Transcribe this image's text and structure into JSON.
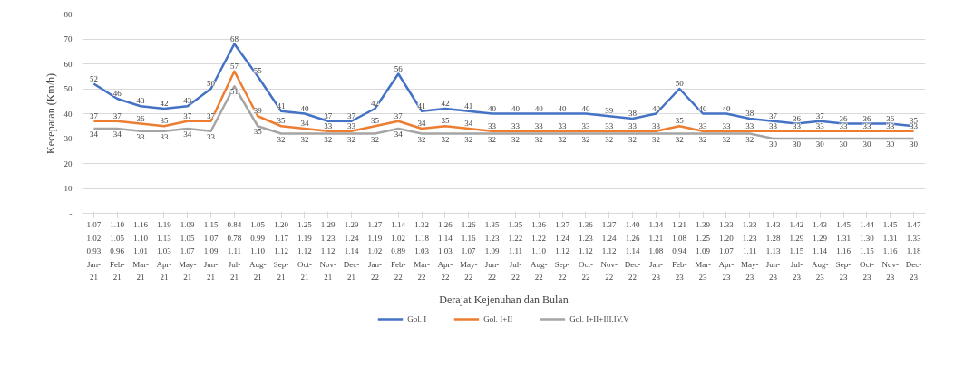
{
  "chart_data": {
    "type": "line",
    "xlabel": "Derajat Kejenuhan dan Bulan",
    "ylabel": "Kecepatan (Km/h)",
    "categories": [
      "1.07\n1.02\n0.93\nJan-\n21",
      "1.10\n1.05\n0.96\nFeb-\n21",
      "1.16\n1.10\n1.01\nMar-\n21",
      "1.19\n1.13\n1.03\nApr-\n21",
      "1.09\n1.05\n1.07\nMay-\n21",
      "1.15\n1.07\n1.09\nJun-\n21",
      "0.84\n0.78\n1.11\nJul-\n21",
      "1.05\n0.99\n1.10\nAug-\n21",
      "1.20\n1.17\n1.12\nSep-\n21",
      "1.25\n1.19\n1.12\nOct-\n21",
      "1.29\n1.23\n1.12\nNov-\n21",
      "1.29\n1.24\n1.14\nDec-\n21",
      "1.27\n1.19\n1.02\nJan-\n22",
      "1.14\n1.02\n0.89\nFeb-\n22",
      "1.32\n1.18\n1.03\nMar-\n22",
      "1.26\n1.14\n1.03\nApr-\n22",
      "1.26\n1.16\n1.07\nMay-\n22",
      "1.35\n1.23\n1.09\nJun-\n22",
      "1.35\n1.22\n1.11\nJul-\n22",
      "1.36\n1.22\n1.10\nAug-\n22",
      "1.37\n1.24\n1.12\nSep-\n22",
      "1.36\n1.23\n1.12\nOct-\n22",
      "1.37\n1.24\n1.12\nNov-\n22",
      "1.40\n1.26\n1.14\nDec-\n22",
      "1.34\n1.21\n1.08\nJan-\n23",
      "1.21\n1.08\n0.94\nFeb-\n23",
      "1.39\n1.25\n1.09\nMar-\n23",
      "1.33\n1.20\n1.07\nApr-\n23",
      "1.33\n1.23\n1.11\nMay-\n23",
      "1.43\n1.28\n1.13\nJun-\n23",
      "1.42\n1.29\n1.15\nJul-\n23",
      "1.43\n1.29\n1.14\nAug-\n23",
      "1.45\n1.31\n1.16\nSep-\n23",
      "1.44\n1.30\n1.15\nOct-\n23",
      "1.45\n1.31\n1.16\nNov-\n23",
      "1.47\n1.33\n1.18\nDec-\n23"
    ],
    "series": [
      {
        "name": "Gol. I",
        "color": "#4472c4",
        "values": [
          52,
          46,
          43,
          42,
          43,
          50,
          68,
          55,
          41,
          40,
          37,
          37,
          42,
          56,
          41,
          42,
          41,
          40,
          40,
          40,
          40,
          40,
          39,
          38,
          40,
          50,
          40,
          40,
          38,
          37,
          36,
          37,
          36,
          36,
          36,
          35
        ]
      },
      {
        "name": "Gol. I+II",
        "color": "#ed7d31",
        "values": [
          37,
          37,
          36,
          35,
          37,
          37,
          57,
          39,
          35,
          34,
          33,
          33,
          35,
          37,
          34,
          35,
          34,
          33,
          33,
          33,
          33,
          33,
          33,
          33,
          33,
          35,
          33,
          33,
          33,
          33,
          33,
          33,
          33,
          33,
          33,
          33
        ]
      },
      {
        "name": "Gol. I+II+III,IV,V",
        "color": "#a5a5a5",
        "values": [
          34,
          34,
          33,
          33,
          34,
          33,
          51,
          35,
          32,
          32,
          32,
          32,
          32,
          34,
          32,
          32,
          32,
          32,
          32,
          32,
          32,
          32,
          32,
          32,
          32,
          32,
          32,
          32,
          32,
          30,
          30,
          30,
          30,
          30,
          30,
          30
        ]
      }
    ],
    "ylim": [
      0,
      80
    ],
    "yticks": [
      {
        "value": 0,
        "label": "-"
      },
      10,
      20,
      30,
      40,
      50,
      60,
      70,
      80
    ],
    "grid": "y",
    "legend": "bottom",
    "data_labels": true,
    "marker": "none",
    "line_style": "solid"
  }
}
